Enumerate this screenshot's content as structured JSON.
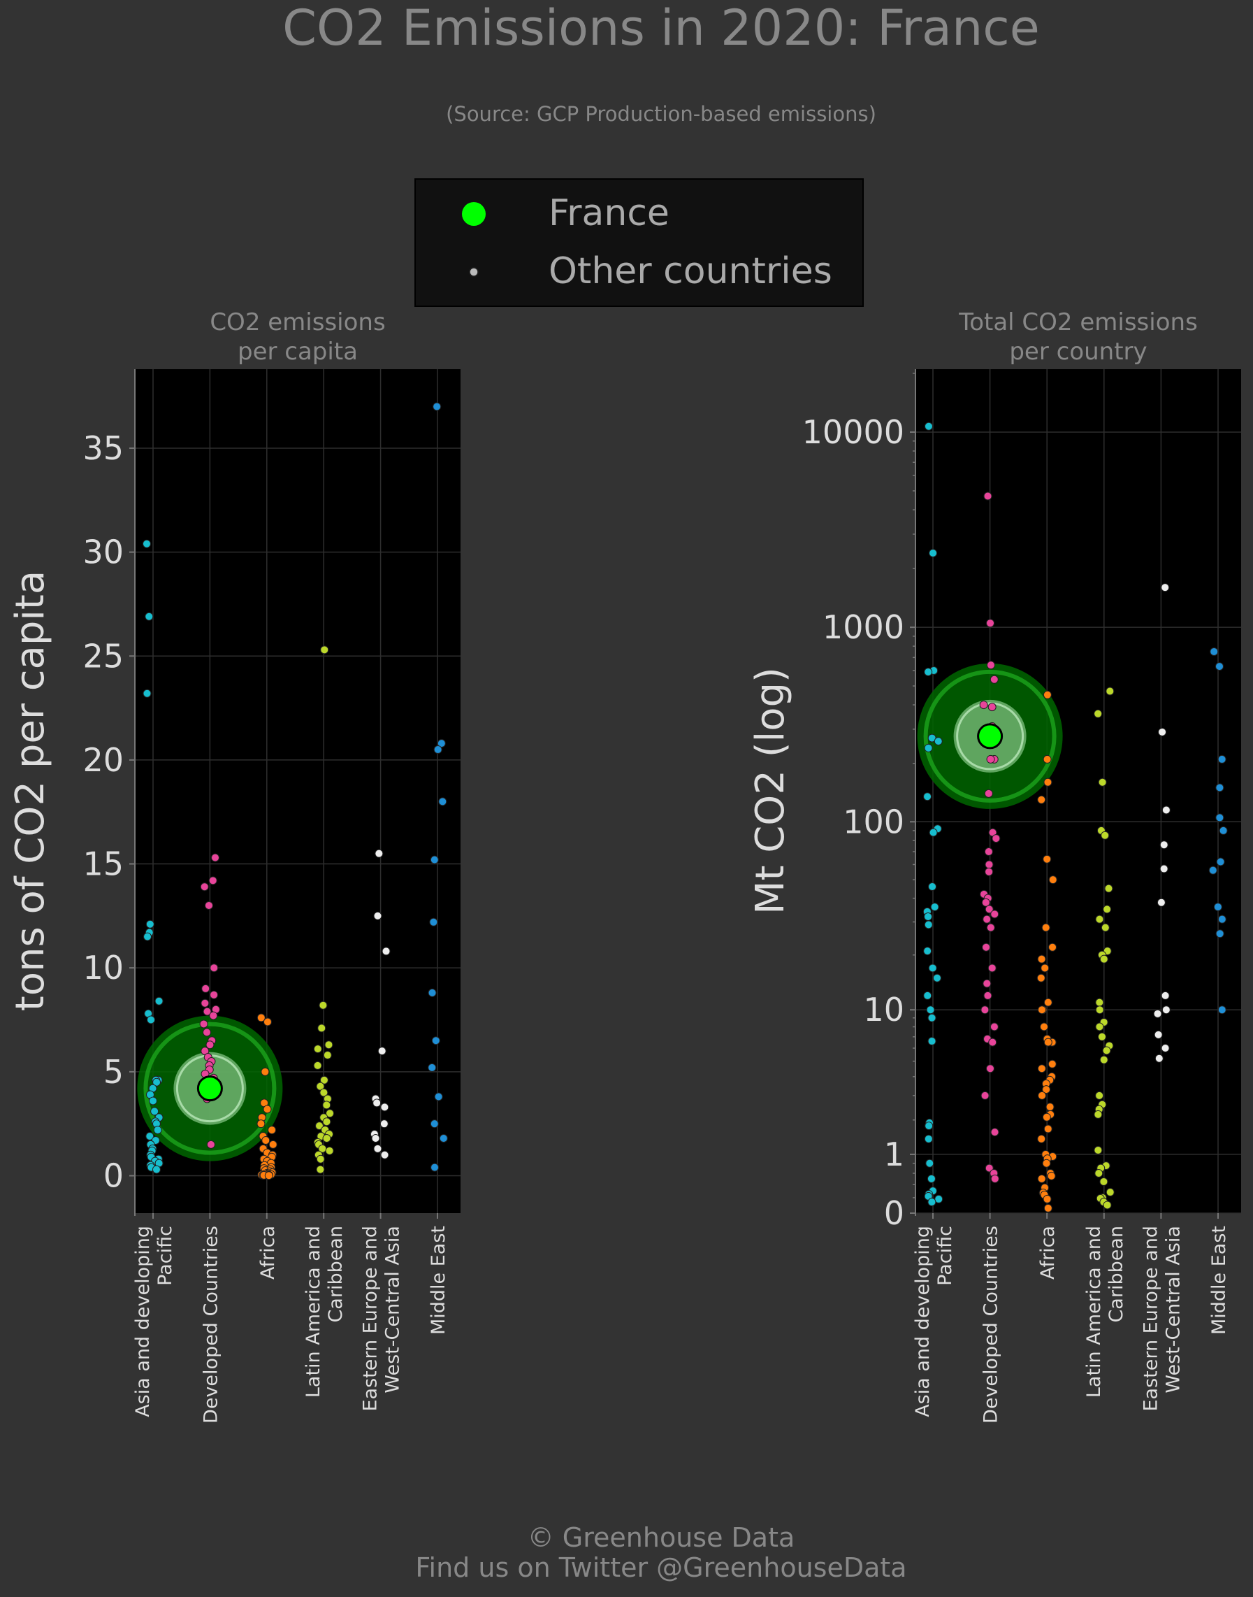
{
  "title": "CO2 Emissions in 2020: France",
  "subtitle": "(Source: GCP Production-based emissions)",
  "legend": {
    "placement": "top-center",
    "items": [
      {
        "label": "France",
        "color": "#00ff00",
        "marker": "large-dot"
      },
      {
        "label": "Other countries",
        "color": "#bbbbbb",
        "marker": "small-dot"
      }
    ]
  },
  "footer": {
    "line1": "© Greenhouse Data",
    "line2": "Find us on Twitter @GreenhouseData"
  },
  "colors": {
    "background": "#333333",
    "plot_background": "#000000",
    "highlight": "#00ff00",
    "regions": {
      "Asia and developing Pacific": "#17becf",
      "Developed Countries": "#e8449a",
      "Africa": "#ff7f0e",
      "Latin America and Caribbean": "#bcd82a",
      "Eastern Europe and West-Central Asia": "#eeeeee",
      "Middle East": "#1f8fd6"
    }
  },
  "chart_data": [
    {
      "type": "scatter",
      "title": "CO2 emissions\nper capita",
      "ylabel": "tons of CO2 per capita",
      "xlabel": "",
      "categories": [
        "Asia and developing\nPacific",
        "Developed Countries",
        "Africa",
        "Latin America and\nCaribbean",
        "Eastern Europe and\nWest-Central Asia",
        "Middle East"
      ],
      "ylim": [
        -1.8,
        38.8
      ],
      "yticks": [
        0,
        5,
        10,
        15,
        20,
        25,
        30,
        35
      ],
      "grid": true,
      "highlight": {
        "name": "France",
        "category": "Developed Countries",
        "value": 4.2
      },
      "series": [
        {
          "category": "Asia and developing\nPacific",
          "values": [
            30.4,
            26.9,
            23.2,
            12.1,
            11.7,
            11.5,
            8.4,
            7.8,
            7.5,
            4.6,
            4.6,
            4.5,
            4.2,
            3.9,
            3.6,
            3.1,
            2.8,
            2.6,
            2.5,
            2.2,
            1.9,
            1.7,
            1.5,
            1.3,
            1.2,
            1.0,
            0.9,
            0.8,
            0.7,
            0.6,
            0.5,
            0.4,
            0.3
          ]
        },
        {
          "category": "Developed Countries",
          "values": [
            15.3,
            14.2,
            13.9,
            13.0,
            10.0,
            9.0,
            8.7,
            8.3,
            8.0,
            7.9,
            7.7,
            7.3,
            6.9,
            6.5,
            6.3,
            6.0,
            5.7,
            5.5,
            5.3,
            5.1,
            4.9,
            4.7,
            4.5,
            4.3,
            4.1,
            3.9,
            3.7,
            1.5
          ]
        },
        {
          "category": "Africa",
          "values": [
            7.6,
            7.4,
            5.0,
            3.5,
            3.2,
            2.8,
            2.5,
            2.2,
            1.9,
            1.7,
            1.5,
            1.3,
            1.1,
            1.0,
            0.9,
            0.8,
            0.7,
            0.6,
            0.5,
            0.4,
            0.35,
            0.3,
            0.25,
            0.2,
            0.15,
            0.12,
            0.1,
            0.08,
            0.06,
            0.05,
            0.04,
            0.03,
            0.02,
            0.02,
            0.01
          ]
        },
        {
          "category": "Latin America and\nCaribbean",
          "values": [
            25.3,
            8.2,
            7.1,
            6.3,
            6.1,
            5.8,
            5.3,
            4.6,
            4.3,
            4.0,
            3.7,
            3.4,
            3.0,
            2.8,
            2.6,
            2.4,
            2.2,
            2.0,
            1.9,
            1.8,
            1.6,
            1.5,
            1.3,
            1.2,
            1.0,
            0.8,
            0.3
          ]
        },
        {
          "category": "Eastern Europe and\nWest-Central Asia",
          "values": [
            15.5,
            12.5,
            10.8,
            6.0,
            3.7,
            3.5,
            3.3,
            2.5,
            2.0,
            1.8,
            1.3,
            1.0
          ]
        },
        {
          "category": "Middle East",
          "values": [
            37.0,
            20.8,
            20.5,
            18.0,
            15.2,
            12.2,
            8.8,
            6.5,
            5.2,
            3.8,
            2.5,
            1.8,
            0.4
          ]
        }
      ]
    },
    {
      "type": "scatter",
      "title": "Total CO2 emissions\nper country",
      "ylabel": "Mt CO2 (log)",
      "xlabel": "",
      "scale": "symlog",
      "categories": [
        "Asia and developing\nPacific",
        "Developed Countries",
        "Africa",
        "Latin America and\nCaribbean",
        "Eastern Europe and\nWest-Central Asia",
        "Middle East"
      ],
      "ylim": [
        0,
        21000
      ],
      "yticks": [
        0,
        1,
        10,
        100,
        1000,
        10000
      ],
      "grid": true,
      "highlight": {
        "name": "France",
        "category": "Developed Countries",
        "value": 276
      },
      "series": [
        {
          "category": "Asia and developing\nPacific",
          "values": [
            10700,
            2400,
            600,
            590,
            270,
            260,
            240,
            135,
            92,
            88,
            46,
            36,
            34,
            32,
            29,
            21,
            17,
            15,
            12,
            10,
            9,
            6.6,
            1.9,
            1.8,
            1.4,
            0.8,
            0.5,
            0.3,
            0.25,
            0.22,
            0.18,
            0.14
          ]
        },
        {
          "category": "Developed Countries",
          "values": [
            4700,
            1050,
            640,
            540,
            400,
            390,
            310,
            210,
            210,
            140,
            88,
            82,
            70,
            60,
            55,
            42,
            40,
            38,
            35,
            33,
            31,
            28,
            22,
            17,
            14,
            12,
            10,
            8,
            6.8,
            6.5,
            4.5,
            3.0,
            1.6,
            0.7,
            0.6,
            0.5
          ]
        },
        {
          "category": "Africa",
          "values": [
            450,
            210,
            160,
            130,
            64,
            50,
            28,
            22,
            19,
            17,
            15,
            11,
            10,
            10,
            8,
            6.8,
            6.5,
            6.5,
            4.8,
            4.5,
            4.0,
            3.8,
            3.6,
            3.3,
            3.0,
            2.5,
            2.2,
            2.1,
            1.7,
            1.4,
            1.0,
            0.95,
            0.9,
            0.8,
            0.6,
            0.55,
            0.5,
            0.35,
            0.27,
            0.24,
            0.18,
            0.06
          ]
        },
        {
          "category": "Latin America and\nCaribbean",
          "values": [
            470,
            360,
            160,
            90,
            85,
            45,
            35,
            31,
            28,
            21,
            20,
            19,
            11,
            10,
            8.5,
            8,
            7,
            6.2,
            5.8,
            5.1,
            3.0,
            2.6,
            2.4,
            2.2,
            1.1,
            0.75,
            0.7,
            0.6,
            0.45,
            0.28,
            0.2,
            0.19,
            0.14,
            0.1
          ]
        },
        {
          "category": "Eastern Europe and\nWest-Central Asia",
          "values": [
            1600,
            290,
            115,
            76,
            57,
            38,
            12,
            10,
            9.5,
            7.2,
            6.0,
            5.2
          ]
        },
        {
          "category": "Middle East",
          "values": [
            750,
            630,
            210,
            150,
            105,
            90,
            62,
            56,
            36,
            31,
            26,
            10
          ]
        }
      ]
    }
  ]
}
